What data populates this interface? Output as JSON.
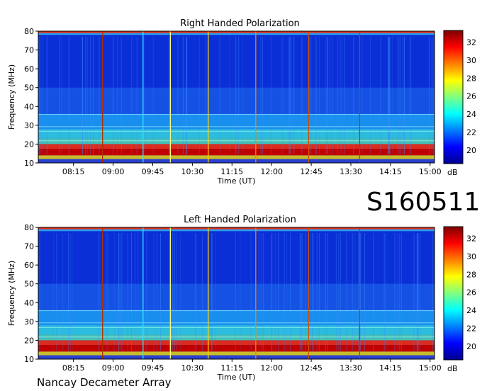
{
  "chart_data": [
    {
      "type": "heatmap",
      "title": "Right Handed Polarization",
      "xlabel": "Time (UT)",
      "ylabel": "Frequency (MHz)",
      "x_ticks": [
        "08:15",
        "09:00",
        "09:45",
        "10:30",
        "11:15",
        "12:00",
        "12:45",
        "13:30",
        "14:15",
        "15:00"
      ],
      "y_ticks": [
        10,
        20,
        30,
        40,
        50,
        60,
        70,
        80
      ],
      "ylim": [
        10,
        80
      ],
      "colorbar": {
        "unit": "dB",
        "ticks": [
          20,
          22,
          24,
          26,
          28,
          30,
          32
        ],
        "range": [
          18.5,
          33.3
        ]
      },
      "colormap": [
        "#00008f",
        "#0000ff",
        "#007fff",
        "#00ffff",
        "#7fff7f",
        "#ffff00",
        "#ff7f00",
        "#ff0000",
        "#7f0000"
      ],
      "vertical_event_lines": [
        "08:48",
        "09:34",
        "10:05",
        "10:48",
        "11:42",
        "12:42",
        "13:40"
      ]
    },
    {
      "type": "heatmap",
      "title": "Left Handed Polarization",
      "xlabel": "Time (UT)",
      "ylabel": "Frequency (MHz)",
      "x_ticks": [
        "08:15",
        "09:00",
        "09:45",
        "10:30",
        "11:15",
        "12:00",
        "12:45",
        "13:30",
        "14:15",
        "15:00"
      ],
      "y_ticks": [
        10,
        20,
        30,
        40,
        50,
        60,
        70,
        80
      ],
      "ylim": [
        10,
        80
      ],
      "colorbar": {
        "unit": "dB",
        "ticks": [
          20,
          22,
          24,
          26,
          28,
          30,
          32
        ],
        "range": [
          18.5,
          33.3
        ]
      },
      "colormap": [
        "#00008f",
        "#0000ff",
        "#007fff",
        "#00ffff",
        "#7fff7f",
        "#ffff00",
        "#ff7f00",
        "#ff0000",
        "#7f0000"
      ],
      "vertical_event_lines": [
        "08:48",
        "09:34",
        "10:05",
        "10:48",
        "11:42",
        "12:42",
        "13:40"
      ]
    }
  ],
  "labels": {
    "date_code": "S160511",
    "footer": "Nancay Decameter Array"
  }
}
